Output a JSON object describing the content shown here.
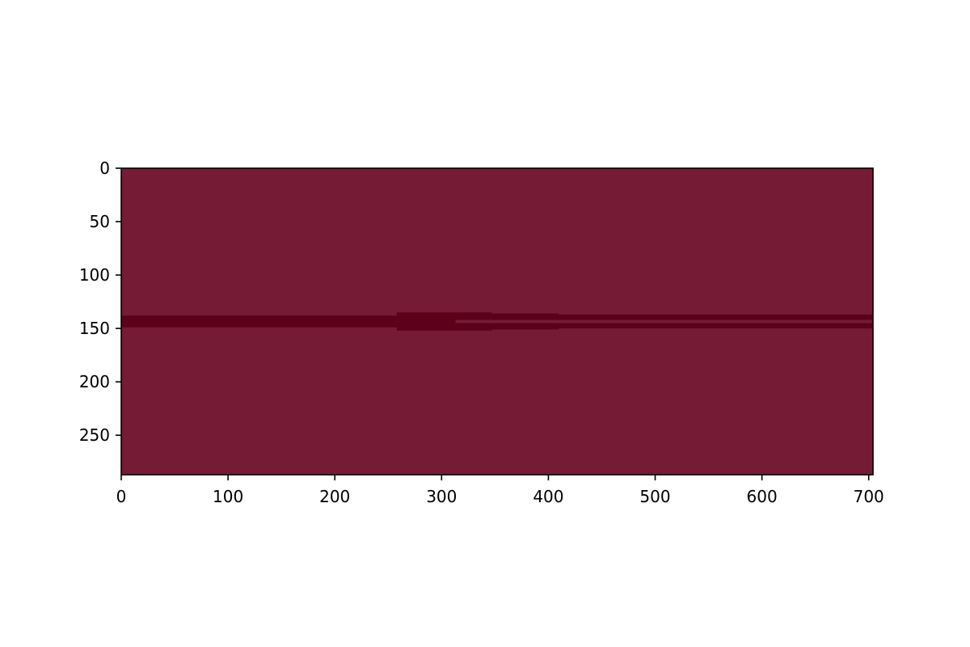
{
  "chart_data": {
    "type": "heatmap",
    "title": "",
    "xlabel": "",
    "ylabel": "",
    "xlim": [
      0,
      704
    ],
    "ylim": [
      287,
      0
    ],
    "y_axis_inverted": true,
    "grid": false,
    "legend": "none",
    "x_ticks": [
      0,
      100,
      200,
      300,
      400,
      500,
      600,
      700
    ],
    "y_ticks": [
      0,
      50,
      100,
      150,
      200,
      250
    ],
    "background_color": "#761b35",
    "feature_color": "#5c001c",
    "bands": [
      {
        "x": [
          0,
          258
        ],
        "y": [
          138,
          149
        ]
      },
      {
        "x": [
          258,
          347
        ],
        "y": [
          135,
          152
        ]
      },
      {
        "x": [
          347,
          410
        ],
        "y": [
          136,
          151
        ]
      },
      {
        "x": [
          410,
          704
        ],
        "y": [
          137,
          150
        ]
      }
    ],
    "gaps": [
      {
        "x": [
          313,
          704
        ],
        "y": [
          142,
          145
        ]
      }
    ]
  },
  "colors": {
    "axis": "#000000",
    "figure_background": "#ffffff"
  }
}
